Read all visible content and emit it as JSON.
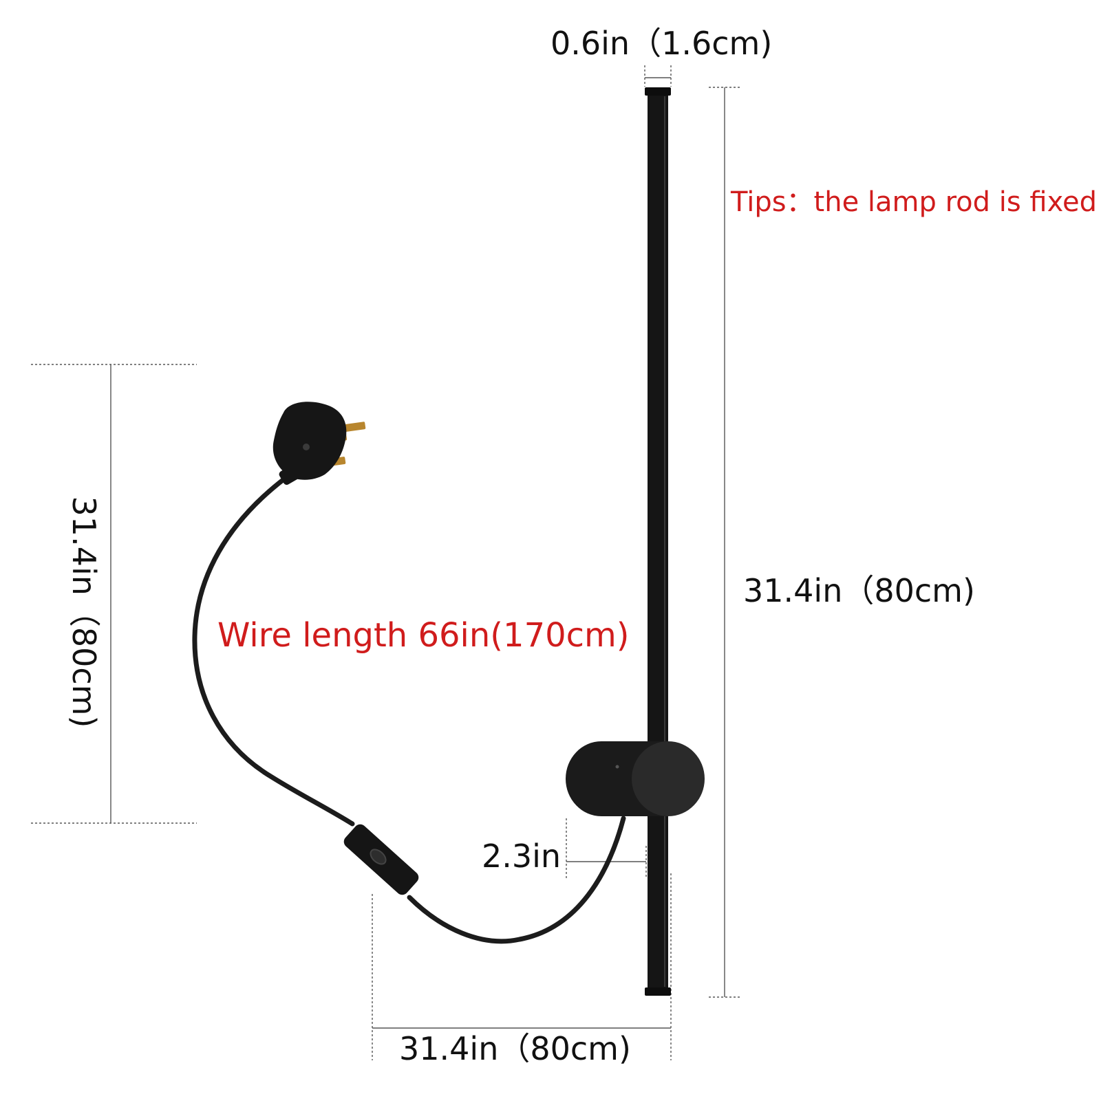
{
  "labels": {
    "rod_width": "0.6in（1.6cm)",
    "tip": "Tips：the lamp rod is fixed",
    "rod_length": "31.4in（80cm)",
    "wire_length": "Wire length 66in(170cm)",
    "height": "31.4in（80cm)",
    "base_offset": "2.3in",
    "overall_width": "31.4in（80cm)"
  },
  "colors": {
    "background": "#ffffff",
    "annotation_red": "#d01c1c",
    "lamp_black": "#151515",
    "dimension_line": "#555555",
    "plug_prong_brass": "#b8862e"
  },
  "icons": {
    "lamp": "wall-lamp-rod",
    "plug": "uk-plug",
    "switch": "inline-switch"
  }
}
